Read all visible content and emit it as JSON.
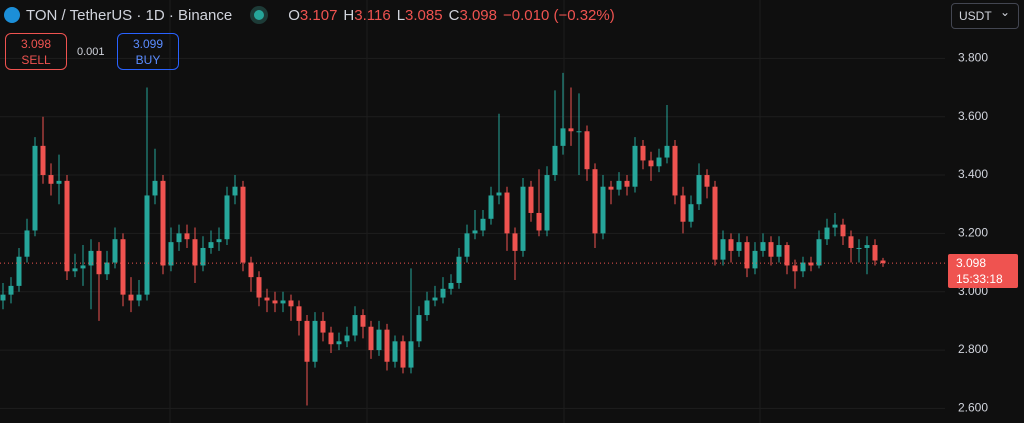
{
  "chart_data": {
    "type": "candlestick",
    "title": "TON / TetherUS · 1D · Binance",
    "ohlc_labels": [
      "O",
      "H",
      "L",
      "C"
    ],
    "ohlc_values": [
      3.107,
      3.116,
      3.085,
      3.098
    ],
    "change": "−0.010 (−0.32%)",
    "sell": {
      "price": 3.098,
      "label": "SELL"
    },
    "spread": 0.001,
    "buy": {
      "price": 3.099,
      "label": "BUY"
    },
    "currency": "USDT",
    "last_price": 3.098,
    "countdown": "15:33:18",
    "up_color": "#26a69a",
    "down_color": "#ef5350",
    "ylim": [
      2.55,
      4.0
    ],
    "yticks": [
      {
        "value": 2.6,
        "label": "2.600"
      },
      {
        "value": 2.8,
        "label": "2.800"
      },
      {
        "value": 3.0,
        "label": "3.000"
      },
      {
        "value": 3.2,
        "label": "3.200"
      },
      {
        "value": 3.4,
        "label": "3.400"
      },
      {
        "value": 3.6,
        "label": "3.600"
      },
      {
        "value": 3.8,
        "label": "3.800"
      }
    ],
    "grid": true,
    "open": [
      2.97,
      2.99,
      3.02,
      3.12,
      3.21,
      3.5,
      3.4,
      3.37,
      3.38,
      3.07,
      3.08,
      3.09,
      3.14,
      3.06,
      3.1,
      3.18,
      2.99,
      2.97,
      2.99,
      3.33,
      3.38,
      3.09,
      3.17,
      3.2,
      3.18,
      3.09,
      3.15,
      3.17,
      3.18,
      3.33,
      3.36,
      3.1,
      3.05,
      2.98,
      2.97,
      2.96,
      2.97,
      2.95,
      2.9,
      2.76,
      2.9,
      2.86,
      2.82,
      2.83,
      2.85,
      2.92,
      2.88,
      2.8,
      2.87,
      2.76,
      2.83,
      2.74,
      2.83,
      2.92,
      2.97,
      2.98,
      3.01,
      3.03,
      3.12,
      3.2,
      3.21,
      3.25,
      3.33,
      3.34,
      3.2,
      3.14,
      3.36,
      3.27,
      3.21,
      3.4,
      3.5,
      3.56,
      3.55,
      3.55,
      3.42,
      3.2,
      3.36,
      3.35,
      3.38,
      3.36,
      3.5,
      3.45,
      3.43,
      3.46,
      3.5,
      3.33,
      3.24,
      3.3,
      3.4,
      3.36,
      3.11,
      3.18,
      3.14,
      3.17,
      3.08,
      3.14,
      3.17,
      3.12,
      3.16,
      3.09,
      3.07,
      3.1,
      3.09,
      3.18,
      3.22,
      3.23,
      3.19,
      3.15,
      3.15,
      3.16,
      3.107
    ],
    "high": [
      3.03,
      3.05,
      3.15,
      3.25,
      3.53,
      3.6,
      3.44,
      3.47,
      3.4,
      3.13,
      3.16,
      3.18,
      3.17,
      3.14,
      3.22,
      3.2,
      3.05,
      3.04,
      3.7,
      3.49,
      3.4,
      3.22,
      3.23,
      3.23,
      3.22,
      3.19,
      3.21,
      3.22,
      3.36,
      3.4,
      3.38,
      3.12,
      3.07,
      3.01,
      3.0,
      3.0,
      2.99,
      2.97,
      2.92,
      2.93,
      2.93,
      2.88,
      2.86,
      2.88,
      2.95,
      2.94,
      2.9,
      2.9,
      2.89,
      2.85,
      2.85,
      3.08,
      2.95,
      3.0,
      3.02,
      3.05,
      3.06,
      3.15,
      3.23,
      3.28,
      3.28,
      3.36,
      3.61,
      3.36,
      3.22,
      3.39,
      3.38,
      3.42,
      3.43,
      3.69,
      3.75,
      3.7,
      3.68,
      3.57,
      3.44,
      3.4,
      3.38,
      3.41,
      3.4,
      3.53,
      3.52,
      3.48,
      3.49,
      3.64,
      3.52,
      3.36,
      3.33,
      3.44,
      3.42,
      3.38,
      3.21,
      3.2,
      3.2,
      3.19,
      3.17,
      3.2,
      3.19,
      3.19,
      3.17,
      3.11,
      3.12,
      3.12,
      3.21,
      3.25,
      3.27,
      3.25,
      3.21,
      3.18,
      3.19,
      3.18,
      3.116
    ],
    "low": [
      2.94,
      2.96,
      3.0,
      3.1,
      3.19,
      3.37,
      3.33,
      3.3,
      3.04,
      3.05,
      3.02,
      2.94,
      2.9,
      3.04,
      3.08,
      2.95,
      2.93,
      2.95,
      2.97,
      3.3,
      3.06,
      3.07,
      3.14,
      3.15,
      3.03,
      3.07,
      3.13,
      3.14,
      3.16,
      3.3,
      3.07,
      3.0,
      2.95,
      2.93,
      2.93,
      2.93,
      2.9,
      2.85,
      2.61,
      2.74,
      2.83,
      2.79,
      2.8,
      2.81,
      2.83,
      2.84,
      2.77,
      2.78,
      2.73,
      2.74,
      2.72,
      2.72,
      2.81,
      2.9,
      2.95,
      2.96,
      2.99,
      3.01,
      3.1,
      3.18,
      3.19,
      3.23,
      3.3,
      3.14,
      3.04,
      3.12,
      3.24,
      3.19,
      3.19,
      3.38,
      3.47,
      3.5,
      3.4,
      3.38,
      3.15,
      3.18,
      3.3,
      3.33,
      3.33,
      3.34,
      3.42,
      3.38,
      3.41,
      3.44,
      3.3,
      3.2,
      3.22,
      3.28,
      3.32,
      3.09,
      3.09,
      3.1,
      3.12,
      3.05,
      3.06,
      3.12,
      3.09,
      3.1,
      3.06,
      3.01,
      3.05,
      3.07,
      3.08,
      3.16,
      3.19,
      3.16,
      3.1,
      3.1,
      3.06,
      3.09,
      3.085
    ],
    "close": [
      2.99,
      3.02,
      3.12,
      3.21,
      3.5,
      3.4,
      3.37,
      3.38,
      3.07,
      3.08,
      3.09,
      3.14,
      3.06,
      3.1,
      3.18,
      2.99,
      2.97,
      2.99,
      3.33,
      3.38,
      3.09,
      3.17,
      3.2,
      3.18,
      3.09,
      3.15,
      3.17,
      3.18,
      3.33,
      3.36,
      3.1,
      3.05,
      2.98,
      2.97,
      2.96,
      2.97,
      2.95,
      2.9,
      2.76,
      2.9,
      2.86,
      2.82,
      2.83,
      2.85,
      2.92,
      2.88,
      2.8,
      2.87,
      2.76,
      2.83,
      2.74,
      2.83,
      2.92,
      2.97,
      2.98,
      3.01,
      3.03,
      3.12,
      3.2,
      3.21,
      3.25,
      3.33,
      3.34,
      3.2,
      3.14,
      3.36,
      3.27,
      3.21,
      3.4,
      3.5,
      3.56,
      3.55,
      3.55,
      3.42,
      3.2,
      3.36,
      3.35,
      3.38,
      3.36,
      3.5,
      3.45,
      3.43,
      3.46,
      3.5,
      3.33,
      3.24,
      3.3,
      3.4,
      3.36,
      3.11,
      3.18,
      3.14,
      3.17,
      3.08,
      3.14,
      3.17,
      3.12,
      3.16,
      3.09,
      3.07,
      3.1,
      3.09,
      3.18,
      3.22,
      3.23,
      3.19,
      3.15,
      3.15,
      3.16,
      3.107,
      3.098
    ]
  }
}
